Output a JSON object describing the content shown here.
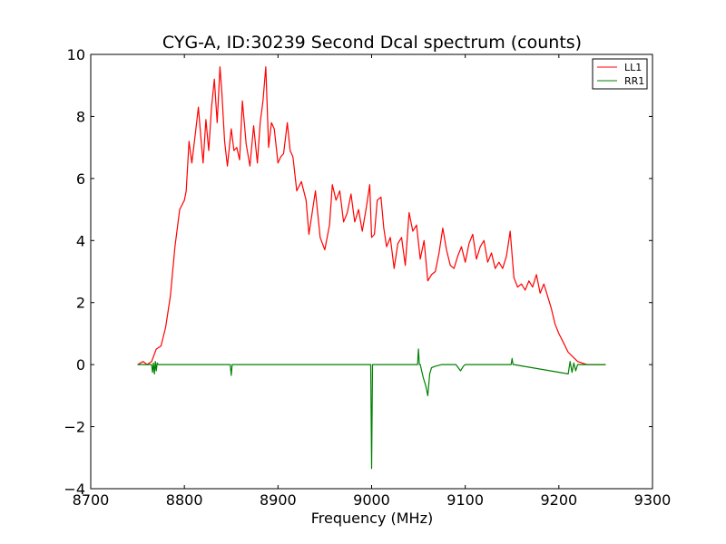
{
  "chart_data": {
    "type": "line",
    "title": "CYG-A, ID:30239 Second Dcal spectrum (counts)",
    "xlabel": "Frequency (MHz)",
    "ylabel": "",
    "xlim": [
      8700,
      9300
    ],
    "ylim": [
      -4,
      10
    ],
    "x_ticks": [
      8700,
      8800,
      8900,
      9000,
      9100,
      9200,
      9300
    ],
    "y_ticks": [
      -4,
      -2,
      0,
      2,
      4,
      6,
      8,
      10
    ],
    "x_tick_labels": [
      "8700",
      "8800",
      "8900",
      "9000",
      "9100",
      "9200",
      "9300"
    ],
    "y_tick_labels": [
      "−4",
      "−2",
      "0",
      "2",
      "4",
      "6",
      "8",
      "10"
    ],
    "grid": false,
    "legend_position": "top-right",
    "series": [
      {
        "name": "LL1",
        "color": "#ff0000",
        "x": [
          8750,
          8756,
          8760,
          8765,
          8770,
          8775,
          8780,
          8785,
          8790,
          8795,
          8800,
          8802,
          8805,
          8808,
          8812,
          8815,
          8818,
          8820,
          8823,
          8826,
          8829,
          8832,
          8835,
          8838,
          8840,
          8843,
          8846,
          8850,
          8853,
          8856,
          8859,
          8862,
          8866,
          8870,
          8874,
          8878,
          8881,
          8884,
          8887,
          8890,
          8893,
          8896,
          8900,
          8903,
          8906,
          8910,
          8913,
          8916,
          8920,
          8925,
          8930,
          8933,
          8936,
          8940,
          8945,
          8950,
          8955,
          8958,
          8962,
          8966,
          8970,
          8974,
          8978,
          8982,
          8986,
          8990,
          8994,
          8998,
          9000,
          9003,
          9006,
          9010,
          9013,
          9016,
          9020,
          9024,
          9028,
          9032,
          9036,
          9040,
          9044,
          9048,
          9052,
          9056,
          9060,
          9064,
          9068,
          9072,
          9076,
          9080,
          9084,
          9088,
          9092,
          9096,
          9100,
          9104,
          9108,
          9112,
          9116,
          9120,
          9124,
          9128,
          9132,
          9136,
          9140,
          9144,
          9148,
          9152,
          9156,
          9160,
          9164,
          9168,
          9172,
          9176,
          9180,
          9184,
          9188,
          9192,
          9196,
          9200,
          9205,
          9210,
          9215,
          9220,
          9225,
          9230,
          9240,
          9250
        ],
        "values": [
          0.0,
          0.1,
          0.0,
          0.1,
          0.5,
          0.6,
          1.2,
          2.2,
          3.8,
          5.0,
          5.3,
          5.6,
          7.2,
          6.5,
          7.5,
          8.3,
          7.2,
          6.5,
          7.9,
          6.9,
          8.3,
          9.2,
          7.8,
          9.6,
          8.8,
          7.2,
          6.4,
          7.6,
          6.9,
          7.0,
          6.6,
          8.5,
          7.1,
          6.4,
          7.7,
          6.5,
          7.8,
          8.5,
          9.6,
          7.0,
          7.8,
          7.6,
          6.5,
          6.7,
          6.8,
          7.8,
          6.9,
          6.7,
          5.6,
          5.9,
          5.3,
          4.2,
          4.8,
          5.6,
          4.1,
          3.7,
          4.5,
          5.8,
          5.3,
          5.6,
          4.6,
          4.9,
          5.5,
          4.6,
          5.0,
          4.3,
          5.0,
          5.8,
          4.1,
          4.2,
          5.3,
          5.4,
          4.4,
          3.8,
          4.1,
          3.1,
          3.9,
          4.1,
          3.2,
          4.9,
          4.3,
          4.5,
          3.4,
          4.0,
          2.7,
          2.9,
          3.0,
          3.6,
          4.4,
          3.7,
          3.2,
          3.1,
          3.5,
          3.8,
          3.3,
          3.9,
          4.2,
          3.4,
          3.8,
          4.0,
          3.3,
          3.6,
          3.1,
          3.3,
          3.1,
          3.5,
          4.3,
          2.8,
          2.5,
          2.6,
          2.4,
          2.7,
          2.5,
          2.9,
          2.3,
          2.6,
          2.2,
          1.8,
          1.3,
          1.0,
          0.7,
          0.4,
          0.25,
          0.1,
          0.05,
          0.0,
          0.0,
          0.0
        ]
      },
      {
        "name": "RR1",
        "color": "#008000",
        "x": [
          8750,
          8765,
          8766,
          8767,
          8768,
          8769,
          8770,
          8771,
          8772,
          8780,
          8849,
          8850,
          8851,
          8852,
          8999,
          9000,
          9001,
          9002,
          9049,
          9050,
          9051,
          9052,
          9055,
          9058,
          9060,
          9062,
          9064,
          9068,
          9075,
          9090,
          9095,
          9098,
          9100,
          9149,
          9150,
          9151,
          9152,
          9210,
          9212,
          9214,
          9216,
          9218,
          9220,
          9225,
          9250
        ],
        "values": [
          0.0,
          0.0,
          -0.25,
          0.05,
          -0.3,
          0.1,
          -0.2,
          0.05,
          0.0,
          0.0,
          0.0,
          -0.35,
          0.0,
          0.0,
          0.0,
          -3.35,
          0.0,
          0.0,
          0.0,
          0.5,
          0.0,
          0.0,
          -0.4,
          -0.7,
          -1.0,
          -0.3,
          -0.1,
          -0.05,
          0.0,
          0.0,
          -0.2,
          -0.05,
          0.0,
          0.0,
          0.2,
          0.0,
          0.0,
          -0.3,
          0.1,
          -0.25,
          0.05,
          -0.2,
          0.0,
          0.0,
          0.0
        ]
      }
    ]
  }
}
